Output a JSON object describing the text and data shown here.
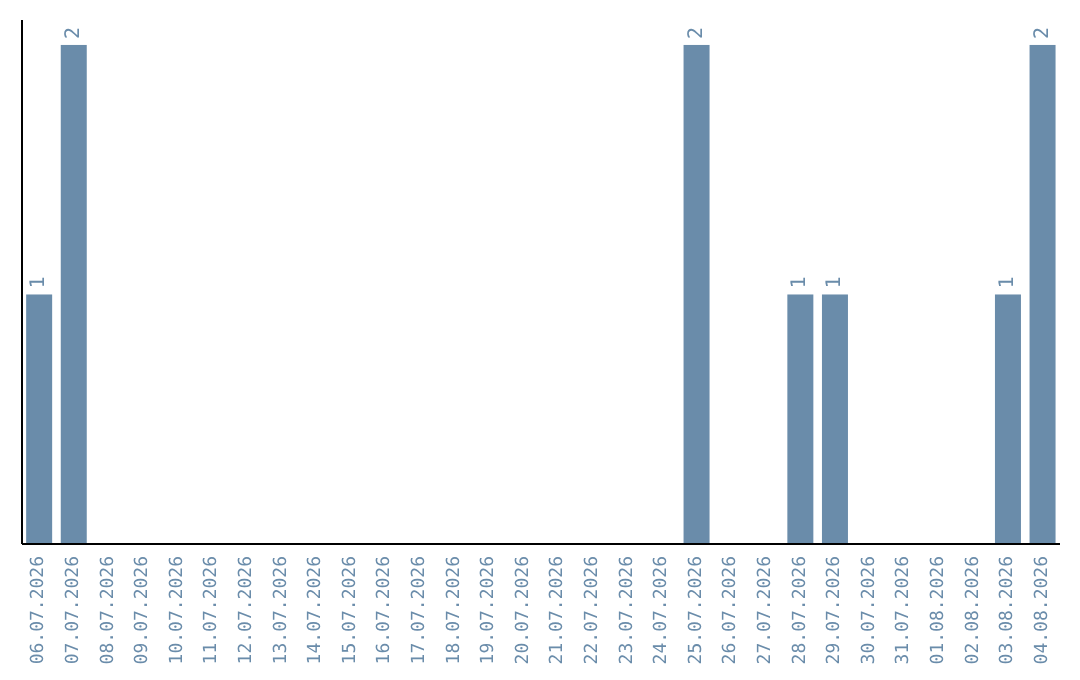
{
  "chart_data": {
    "type": "bar",
    "categories": [
      "06.07.2026",
      "07.07.2026",
      "08.07.2026",
      "09.07.2026",
      "10.07.2026",
      "11.07.2026",
      "12.07.2026",
      "13.07.2026",
      "14.07.2026",
      "15.07.2026",
      "16.07.2026",
      "17.07.2026",
      "18.07.2026",
      "19.07.2026",
      "20.07.2026",
      "21.07.2026",
      "22.07.2026",
      "23.07.2026",
      "24.07.2026",
      "25.07.2026",
      "26.07.2026",
      "27.07.2026",
      "28.07.2026",
      "29.07.2026",
      "30.07.2026",
      "31.07.2026",
      "01.08.2026",
      "02.08.2026",
      "03.08.2026",
      "04.08.2026"
    ],
    "values": [
      1,
      2,
      0,
      0,
      0,
      0,
      0,
      0,
      0,
      0,
      0,
      0,
      0,
      0,
      0,
      0,
      0,
      0,
      0,
      2,
      0,
      0,
      1,
      1,
      0,
      0,
      0,
      0,
      1,
      2
    ],
    "value_labels": [
      "1",
      "2",
      null,
      null,
      null,
      null,
      null,
      null,
      null,
      null,
      null,
      null,
      null,
      null,
      null,
      null,
      null,
      null,
      null,
      "2",
      null,
      null,
      "1",
      "1",
      null,
      null,
      null,
      null,
      "1",
      "2"
    ],
    "color": "#6a8caa",
    "ylim": [
      0,
      2.1
    ],
    "grid": false,
    "legend": false
  }
}
